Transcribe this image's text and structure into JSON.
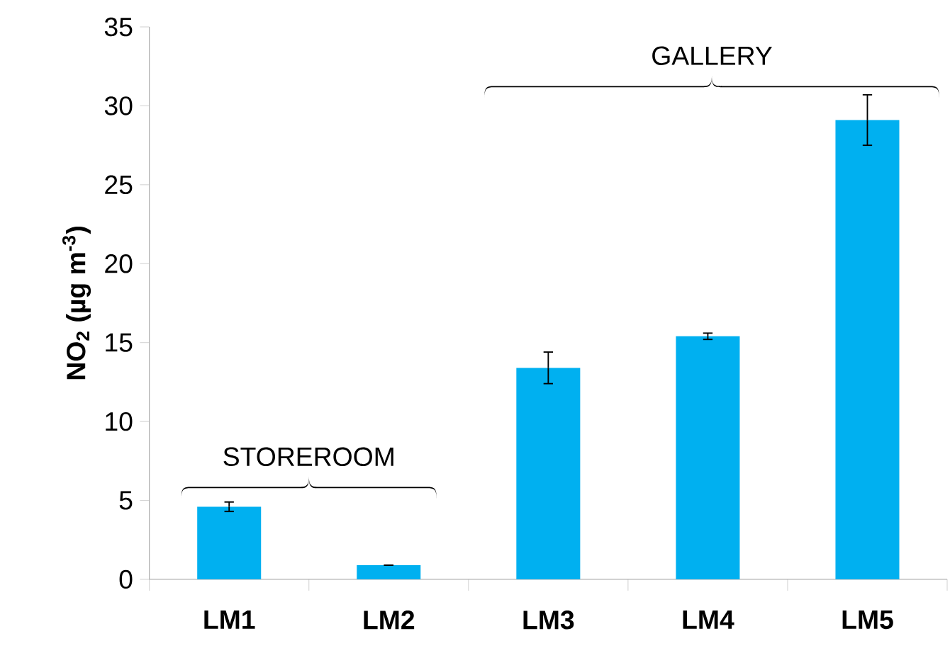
{
  "chart_data": {
    "type": "bar",
    "ylabel": "NO$_{2}$ (µg m$^{-3}$)",
    "categories": [
      "LM1",
      "LM2",
      "LM3",
      "LM4",
      "LM5"
    ],
    "values": [
      4.6,
      0.9,
      13.4,
      15.4,
      29.1
    ],
    "errors": [
      0.3,
      null,
      1.0,
      0.2,
      1.6
    ],
    "color": "#00b0f0",
    "ylim": [
      0,
      35
    ],
    "yticks": [
      0,
      5,
      10,
      15,
      20,
      25,
      30,
      35
    ],
    "grid": false,
    "annotations": [
      "STOREROOM",
      "GALLERY"
    ]
  }
}
